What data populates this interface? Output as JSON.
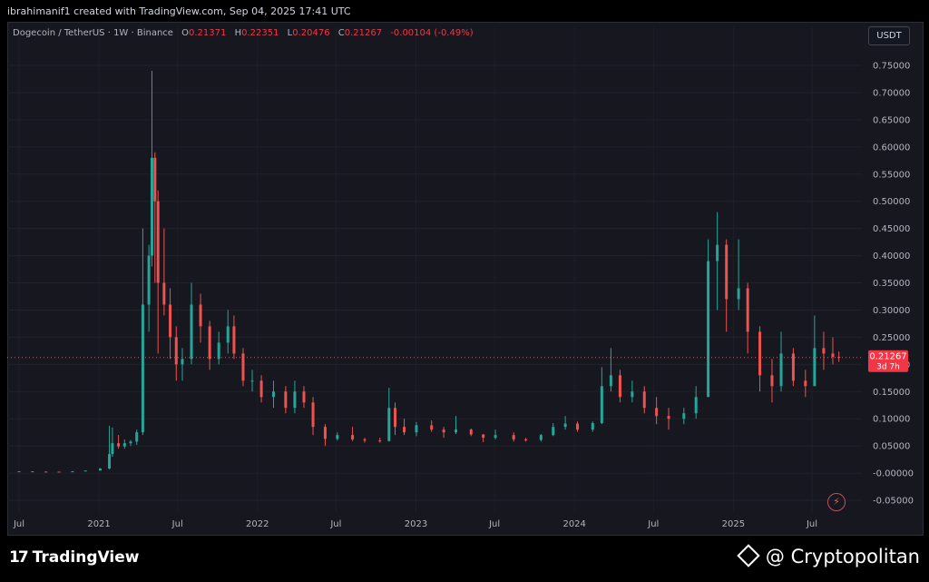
{
  "header": {
    "creator_line": "ibrahimanif1 created with TradingView.com, Sep 04, 2025 17:41 UTC"
  },
  "legend": {
    "symbol": "Dogecoin / TetherUS · 1W · Binance",
    "o_label": "O",
    "o_value": "0.21371",
    "h_label": "H",
    "h_value": "0.22351",
    "l_label": "L",
    "l_value": "0.20476",
    "c_label": "C",
    "c_value": "0.21267",
    "change": "-0.00104 (-0.49%)"
  },
  "currency_button": "USDT",
  "price_tag": {
    "price": "0.21267",
    "countdown": "3d 7h"
  },
  "footer": {
    "logo_text": "TradingView",
    "watermark": "@ Cryptopolitan"
  },
  "colors": {
    "up": "#26a69a",
    "down": "#ef5350",
    "background": "#17171f"
  },
  "chart_data": {
    "type": "candlestick",
    "title": "",
    "ylim": [
      -0.065,
      0.78
    ],
    "yticks": [
      "0.75000",
      "0.70000",
      "0.65000",
      "0.60000",
      "0.55000",
      "0.50000",
      "0.45000",
      "0.40000",
      "0.35000",
      "0.30000",
      "0.25000",
      "0.20000",
      "0.15000",
      "0.10000",
      "0.05000",
      "-0.00000",
      "-0.05000"
    ],
    "ytick_values": [
      0.75,
      0.7,
      0.65,
      0.6,
      0.55,
      0.5,
      0.45,
      0.4,
      0.35,
      0.3,
      0.25,
      0.2,
      0.15,
      0.1,
      0.05,
      0.0,
      -0.05
    ],
    "xticks": [
      "Jul",
      "2021",
      "Jul",
      "2022",
      "Jul",
      "2023",
      "Jul",
      "2024",
      "Jul",
      "2025",
      "Jul"
    ],
    "xtick_dates": [
      "2020-07-01",
      "2021-01-01",
      "2021-07-01",
      "2022-01-01",
      "2022-07-01",
      "2023-01-01",
      "2023-07-01",
      "2024-01-01",
      "2024-07-01",
      "2025-01-01",
      "2025-07-01"
    ],
    "last_price": 0.21267,
    "candles": [
      [
        "2020-07-01",
        0.0032,
        0.0034,
        0.0031,
        0.0033
      ],
      [
        "2020-08-01",
        0.0033,
        0.0035,
        0.0026,
        0.0028
      ],
      [
        "2020-09-01",
        0.0028,
        0.003,
        0.0025,
        0.0027
      ],
      [
        "2020-10-01",
        0.0027,
        0.0027,
        0.0024,
        0.0025
      ],
      [
        "2020-11-01",
        0.0025,
        0.0036,
        0.0024,
        0.0033
      ],
      [
        "2020-12-01",
        0.0033,
        0.0045,
        0.003,
        0.0047
      ],
      [
        "2021-01-04",
        0.0047,
        0.009,
        0.0045,
        0.0085
      ],
      [
        "2021-01-25",
        0.0085,
        0.087,
        0.007,
        0.035
      ],
      [
        "2021-02-01",
        0.035,
        0.084,
        0.03,
        0.055
      ],
      [
        "2021-02-15",
        0.055,
        0.07,
        0.045,
        0.049
      ],
      [
        "2021-03-01",
        0.049,
        0.062,
        0.045,
        0.055
      ],
      [
        "2021-03-15",
        0.055,
        0.061,
        0.05,
        0.058
      ],
      [
        "2021-03-29",
        0.058,
        0.08,
        0.052,
        0.075
      ],
      [
        "2021-04-12",
        0.075,
        0.45,
        0.07,
        0.31
      ],
      [
        "2021-04-26",
        0.31,
        0.42,
        0.26,
        0.4
      ],
      [
        "2021-05-03",
        0.4,
        0.74,
        0.38,
        0.58
      ],
      [
        "2021-05-10",
        0.58,
        0.59,
        0.35,
        0.5
      ],
      [
        "2021-05-17",
        0.5,
        0.52,
        0.22,
        0.35
      ],
      [
        "2021-05-31",
        0.35,
        0.45,
        0.29,
        0.31
      ],
      [
        "2021-06-14",
        0.31,
        0.34,
        0.21,
        0.25
      ],
      [
        "2021-06-28",
        0.25,
        0.27,
        0.17,
        0.2
      ],
      [
        "2021-07-12",
        0.2,
        0.23,
        0.17,
        0.21
      ],
      [
        "2021-08-02",
        0.21,
        0.35,
        0.2,
        0.31
      ],
      [
        "2021-08-23",
        0.31,
        0.33,
        0.24,
        0.27
      ],
      [
        "2021-09-13",
        0.27,
        0.28,
        0.19,
        0.21
      ],
      [
        "2021-10-04",
        0.21,
        0.26,
        0.2,
        0.24
      ],
      [
        "2021-10-25",
        0.24,
        0.3,
        0.22,
        0.27
      ],
      [
        "2021-11-08",
        0.27,
        0.29,
        0.21,
        0.22
      ],
      [
        "2021-11-29",
        0.22,
        0.23,
        0.16,
        0.17
      ],
      [
        "2021-12-20",
        0.17,
        0.19,
        0.15,
        0.17
      ],
      [
        "2022-01-10",
        0.17,
        0.18,
        0.13,
        0.14
      ],
      [
        "2022-02-07",
        0.14,
        0.17,
        0.12,
        0.15
      ],
      [
        "2022-03-07",
        0.15,
        0.16,
        0.11,
        0.12
      ],
      [
        "2022-03-28",
        0.12,
        0.17,
        0.11,
        0.15
      ],
      [
        "2022-04-18",
        0.15,
        0.16,
        0.12,
        0.13
      ],
      [
        "2022-05-09",
        0.13,
        0.14,
        0.07,
        0.085
      ],
      [
        "2022-06-06",
        0.085,
        0.09,
        0.05,
        0.063
      ],
      [
        "2022-07-04",
        0.063,
        0.075,
        0.06,
        0.07
      ],
      [
        "2022-08-08",
        0.07,
        0.085,
        0.059,
        0.062
      ],
      [
        "2022-09-05",
        0.062,
        0.065,
        0.056,
        0.06
      ],
      [
        "2022-10-10",
        0.06,
        0.065,
        0.056,
        0.059
      ],
      [
        "2022-10-31",
        0.059,
        0.157,
        0.058,
        0.12
      ],
      [
        "2022-11-14",
        0.12,
        0.13,
        0.07,
        0.085
      ],
      [
        "2022-12-05",
        0.085,
        0.1,
        0.07,
        0.075
      ],
      [
        "2023-01-02",
        0.075,
        0.094,
        0.068,
        0.088
      ],
      [
        "2023-02-06",
        0.088,
        0.097,
        0.076,
        0.08
      ],
      [
        "2023-03-06",
        0.08,
        0.085,
        0.065,
        0.075
      ],
      [
        "2023-04-03",
        0.075,
        0.105,
        0.072,
        0.08
      ],
      [
        "2023-05-08",
        0.08,
        0.082,
        0.068,
        0.071
      ],
      [
        "2023-06-05",
        0.071,
        0.072,
        0.057,
        0.065
      ],
      [
        "2023-07-03",
        0.065,
        0.08,
        0.062,
        0.07
      ],
      [
        "2023-08-14",
        0.07,
        0.075,
        0.058,
        0.062
      ],
      [
        "2023-09-11",
        0.062,
        0.065,
        0.058,
        0.061
      ],
      [
        "2023-10-16",
        0.061,
        0.072,
        0.058,
        0.07
      ],
      [
        "2023-11-13",
        0.07,
        0.092,
        0.068,
        0.085
      ],
      [
        "2023-12-11",
        0.085,
        0.105,
        0.08,
        0.091
      ],
      [
        "2024-01-08",
        0.091,
        0.095,
        0.076,
        0.08
      ],
      [
        "2024-02-12",
        0.08,
        0.095,
        0.076,
        0.092
      ],
      [
        "2024-03-04",
        0.092,
        0.195,
        0.09,
        0.16
      ],
      [
        "2024-03-25",
        0.16,
        0.23,
        0.15,
        0.18
      ],
      [
        "2024-04-15",
        0.18,
        0.19,
        0.13,
        0.14
      ],
      [
        "2024-05-13",
        0.14,
        0.17,
        0.13,
        0.15
      ],
      [
        "2024-06-10",
        0.15,
        0.16,
        0.11,
        0.12
      ],
      [
        "2024-07-08",
        0.12,
        0.14,
        0.09,
        0.105
      ],
      [
        "2024-08-05",
        0.105,
        0.12,
        0.08,
        0.1
      ],
      [
        "2024-09-09",
        0.1,
        0.12,
        0.09,
        0.11
      ],
      [
        "2024-10-07",
        0.11,
        0.16,
        0.1,
        0.14
      ],
      [
        "2024-11-04",
        0.14,
        0.43,
        0.14,
        0.39
      ],
      [
        "2024-11-25",
        0.39,
        0.48,
        0.3,
        0.42
      ],
      [
        "2024-12-16",
        0.42,
        0.43,
        0.26,
        0.32
      ],
      [
        "2025-01-13",
        0.32,
        0.43,
        0.3,
        0.34
      ],
      [
        "2025-02-03",
        0.34,
        0.35,
        0.22,
        0.26
      ],
      [
        "2025-03-03",
        0.26,
        0.27,
        0.15,
        0.18
      ],
      [
        "2025-03-31",
        0.18,
        0.21,
        0.13,
        0.16
      ],
      [
        "2025-04-21",
        0.16,
        0.26,
        0.15,
        0.22
      ],
      [
        "2025-05-19",
        0.22,
        0.23,
        0.16,
        0.17
      ],
      [
        "2025-06-16",
        0.17,
        0.19,
        0.14,
        0.16
      ],
      [
        "2025-07-07",
        0.16,
        0.29,
        0.16,
        0.23
      ],
      [
        "2025-07-28",
        0.23,
        0.26,
        0.19,
        0.22
      ],
      [
        "2025-08-18",
        0.22,
        0.25,
        0.2,
        0.21371
      ],
      [
        "2025-09-01",
        0.21371,
        0.22351,
        0.20476,
        0.21267
      ]
    ]
  }
}
